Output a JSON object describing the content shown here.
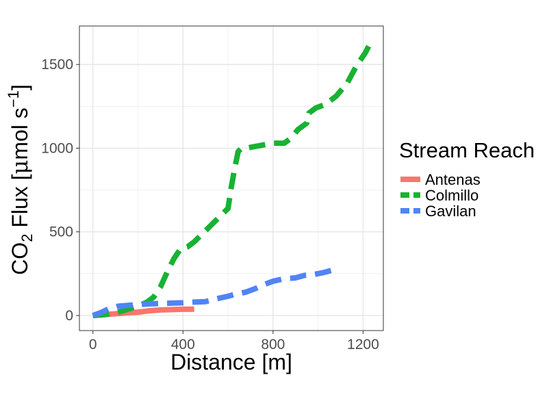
{
  "chart_data": {
    "type": "line",
    "title": "",
    "xlabel": "Distance [m]",
    "ylabel": {
      "prefix": "CO",
      "sub": "2",
      "mid": " Flux [",
      "mu": "μ",
      "unit": "mol s",
      "sup": "−1",
      "suffix": "]"
    },
    "xlim": [
      -60,
      1290
    ],
    "ylim": [
      -90,
      1730
    ],
    "xticks": [
      0,
      400,
      800,
      1200
    ],
    "yticks": [
      0,
      500,
      1000,
      1500
    ],
    "xtick_labels": [
      "0",
      "400",
      "800",
      "1200"
    ],
    "ytick_labels": [
      "0",
      "500",
      "1000",
      "1500"
    ],
    "grid": true,
    "legend": {
      "title": "Stream Reach",
      "position": "right"
    },
    "series": [
      {
        "name": "Antenas",
        "color": "#F8766D",
        "dash": "solid",
        "x": [
          0,
          50,
          100,
          150,
          200,
          250,
          300,
          350,
          400,
          450
        ],
        "y": [
          0,
          5,
          10,
          15,
          20,
          28,
          33,
          35,
          37,
          38
        ]
      },
      {
        "name": "Colmillo",
        "color": "#18B233",
        "dash": "dashed",
        "x": [
          0,
          50,
          100,
          150,
          200,
          240,
          270,
          300,
          330,
          360,
          390,
          420,
          450,
          480,
          510,
          540,
          570,
          600,
          615,
          630,
          645,
          660,
          680,
          720,
          760,
          800,
          850,
          880,
          910,
          950,
          960,
          990,
          1030,
          1080,
          1130,
          1170,
          1210,
          1240
        ],
        "y": [
          0,
          5,
          15,
          35,
          55,
          80,
          110,
          170,
          260,
          340,
          400,
          410,
          440,
          480,
          520,
          560,
          600,
          640,
          770,
          880,
          980,
          1000,
          1000,
          1010,
          1020,
          1030,
          1030,
          1060,
          1110,
          1150,
          1210,
          1240,
          1260,
          1310,
          1390,
          1490,
          1570,
          1650
        ]
      },
      {
        "name": "Gavilan",
        "color": "#5084F5",
        "dash": "dashed",
        "x": [
          0,
          40,
          70,
          110,
          150,
          200,
          260,
          300,
          350,
          400,
          450,
          500,
          550,
          600,
          640,
          680,
          720,
          760,
          800,
          850,
          900,
          940,
          980,
          1020,
          1060
        ],
        "y": [
          0,
          20,
          40,
          55,
          60,
          65,
          70,
          72,
          74,
          76,
          80,
          83,
          100,
          115,
          130,
          140,
          160,
          185,
          205,
          220,
          225,
          240,
          245,
          255,
          270
        ]
      }
    ]
  }
}
